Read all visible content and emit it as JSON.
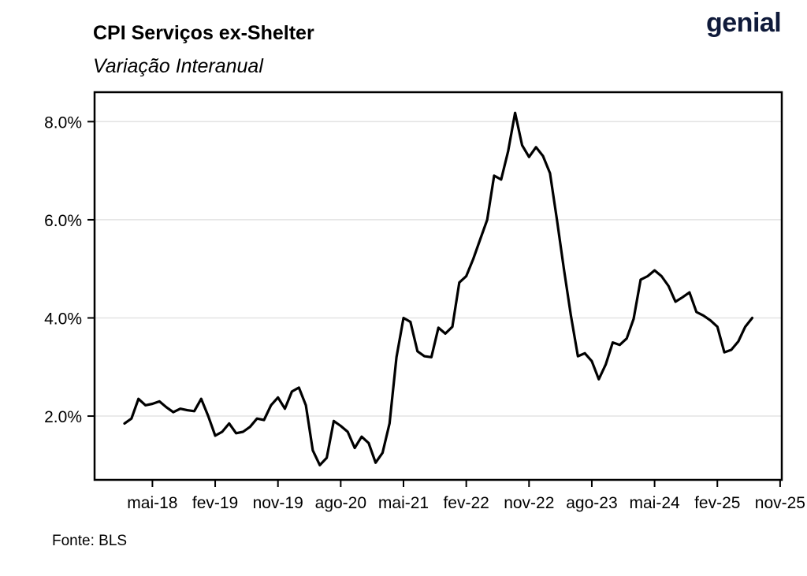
{
  "brand": {
    "logo_text": "genial"
  },
  "chart_data": {
    "type": "line",
    "title": "CPI Serviços ex-Shelter",
    "subtitle": "Variação Interanual",
    "source": "Fonte: BLS",
    "xlabel": "",
    "ylabel": "",
    "grid": "horizontal",
    "legend": "none",
    "line_color": "#000000",
    "x_ticks": [
      "mai-18",
      "fev-19",
      "nov-19",
      "ago-20",
      "mai-21",
      "fev-22",
      "nov-22",
      "ago-23",
      "mai-24",
      "fev-25",
      "nov-25"
    ],
    "y_ticks": [
      "2.0%",
      "4.0%",
      "6.0%",
      "8.0%"
    ],
    "y_tick_values": [
      2,
      4,
      6,
      8
    ],
    "ylim": [
      0.7,
      8.6
    ],
    "x_start": "2018-01",
    "series": [
      {
        "values": [
          1.85,
          1.95,
          2.35,
          2.22,
          2.25,
          2.3,
          2.18,
          2.08,
          2.15,
          2.12,
          2.1,
          2.35,
          2.0,
          1.6,
          1.68,
          1.85,
          1.65,
          1.68,
          1.78,
          1.95,
          1.92,
          2.22,
          2.38,
          2.15,
          2.5,
          2.58,
          2.22,
          1.3,
          1.0,
          1.15,
          1.9,
          1.8,
          1.68,
          1.35,
          1.58,
          1.45,
          1.05,
          1.25,
          1.85,
          3.2,
          4.0,
          3.92,
          3.32,
          3.22,
          3.2,
          3.8,
          3.68,
          3.82,
          4.72,
          4.85,
          5.2,
          5.6,
          6.0,
          6.9,
          6.82,
          7.4,
          8.18,
          7.52,
          7.28,
          7.48,
          7.3,
          6.95,
          6.0,
          5.0,
          4.05,
          3.22,
          3.28,
          3.12,
          2.75,
          3.05,
          3.5,
          3.45,
          3.58,
          3.98,
          4.78,
          4.85,
          4.97,
          4.85,
          4.65,
          4.33,
          4.42,
          4.52,
          4.12,
          4.05,
          3.95,
          3.82,
          3.3,
          3.35,
          3.52,
          3.82,
          4.0
        ]
      }
    ]
  }
}
